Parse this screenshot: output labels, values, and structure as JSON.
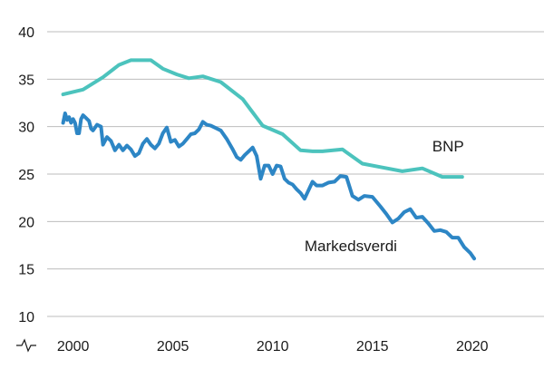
{
  "chart_data": {
    "type": "line",
    "title": "",
    "xlabel": "",
    "ylabel": "",
    "xlim": [
      1998.7,
      2023.6
    ],
    "ylim": [
      10,
      40
    ],
    "y_ticks": [
      10,
      15,
      20,
      25,
      30,
      35,
      40
    ],
    "x_ticks": [
      2000,
      2005,
      2010,
      2015,
      2020
    ],
    "grid": "horizontal",
    "legend": "inline-labels",
    "series": [
      {
        "name": "BNP",
        "color": "#4cc3bd",
        "points": [
          [
            1999.5,
            33.4
          ],
          [
            2000.5,
            33.9
          ],
          [
            2001.5,
            35.2
          ],
          [
            2002.3,
            36.5
          ],
          [
            2002.9,
            37.0
          ],
          [
            2003.3,
            37.0
          ],
          [
            2003.9,
            37.0
          ],
          [
            2004.5,
            36.1
          ],
          [
            2005.2,
            35.5
          ],
          [
            2005.8,
            35.1
          ],
          [
            2006.5,
            35.3
          ],
          [
            2007.4,
            34.7
          ],
          [
            2008.5,
            32.9
          ],
          [
            2009.0,
            31.5
          ],
          [
            2009.5,
            30.1
          ],
          [
            2010.5,
            29.2
          ],
          [
            2011.4,
            27.5
          ],
          [
            2012.0,
            27.4
          ],
          [
            2012.5,
            27.4
          ],
          [
            2013.5,
            27.6
          ],
          [
            2014.5,
            26.1
          ],
          [
            2015.5,
            25.7
          ],
          [
            2016.5,
            25.3
          ],
          [
            2017.5,
            25.6
          ],
          [
            2018.5,
            24.7
          ],
          [
            2019.5,
            24.7
          ]
        ]
      },
      {
        "name": "Markedsverdi",
        "color": "#2d86c5",
        "points": [
          [
            1999.5,
            30.4
          ],
          [
            1999.6,
            31.4
          ],
          [
            1999.7,
            30.7
          ],
          [
            1999.8,
            31.0
          ],
          [
            1999.9,
            30.4
          ],
          [
            2000.0,
            30.8
          ],
          [
            2000.1,
            30.4
          ],
          [
            2000.2,
            29.3
          ],
          [
            2000.3,
            29.3
          ],
          [
            2000.4,
            30.8
          ],
          [
            2000.5,
            31.2
          ],
          [
            2000.65,
            30.9
          ],
          [
            2000.8,
            30.6
          ],
          [
            2000.9,
            29.8
          ],
          [
            2001.0,
            29.6
          ],
          [
            2001.2,
            30.2
          ],
          [
            2001.4,
            30.0
          ],
          [
            2001.5,
            28.1
          ],
          [
            2001.7,
            28.9
          ],
          [
            2001.9,
            28.5
          ],
          [
            2002.1,
            27.5
          ],
          [
            2002.3,
            28.1
          ],
          [
            2002.5,
            27.5
          ],
          [
            2002.7,
            28.0
          ],
          [
            2002.9,
            27.6
          ],
          [
            2003.1,
            26.9
          ],
          [
            2003.3,
            27.2
          ],
          [
            2003.5,
            28.2
          ],
          [
            2003.7,
            28.7
          ],
          [
            2003.9,
            28.1
          ],
          [
            2004.1,
            27.7
          ],
          [
            2004.3,
            28.2
          ],
          [
            2004.5,
            29.3
          ],
          [
            2004.7,
            29.9
          ],
          [
            2004.9,
            28.4
          ],
          [
            2005.1,
            28.6
          ],
          [
            2005.3,
            27.9
          ],
          [
            2005.5,
            28.2
          ],
          [
            2005.7,
            28.7
          ],
          [
            2005.9,
            29.2
          ],
          [
            2006.1,
            29.3
          ],
          [
            2006.3,
            29.7
          ],
          [
            2006.5,
            30.5
          ],
          [
            2006.7,
            30.2
          ],
          [
            2006.9,
            30.1
          ],
          [
            2007.1,
            29.9
          ],
          [
            2007.4,
            29.6
          ],
          [
            2007.7,
            28.7
          ],
          [
            2008.0,
            27.6
          ],
          [
            2008.2,
            26.8
          ],
          [
            2008.4,
            26.5
          ],
          [
            2008.6,
            27.0
          ],
          [
            2008.8,
            27.4
          ],
          [
            2009.0,
            27.8
          ],
          [
            2009.2,
            26.9
          ],
          [
            2009.4,
            24.5
          ],
          [
            2009.6,
            25.9
          ],
          [
            2009.8,
            25.9
          ],
          [
            2010.0,
            25.0
          ],
          [
            2010.2,
            25.9
          ],
          [
            2010.4,
            25.8
          ],
          [
            2010.6,
            24.5
          ],
          [
            2010.8,
            24.1
          ],
          [
            2011.0,
            23.9
          ],
          [
            2011.2,
            23.4
          ],
          [
            2011.4,
            23.0
          ],
          [
            2011.6,
            22.4
          ],
          [
            2011.8,
            23.3
          ],
          [
            2012.0,
            24.2
          ],
          [
            2012.2,
            23.8
          ],
          [
            2012.5,
            23.8
          ],
          [
            2012.8,
            24.1
          ],
          [
            2013.1,
            24.2
          ],
          [
            2013.4,
            24.8
          ],
          [
            2013.7,
            24.7
          ],
          [
            2014.0,
            22.7
          ],
          [
            2014.3,
            22.3
          ],
          [
            2014.6,
            22.7
          ],
          [
            2015.0,
            22.6
          ],
          [
            2015.4,
            21.6
          ],
          [
            2015.7,
            20.8
          ],
          [
            2016.0,
            19.9
          ],
          [
            2016.3,
            20.3
          ],
          [
            2016.6,
            21.0
          ],
          [
            2016.9,
            21.3
          ],
          [
            2017.2,
            20.4
          ],
          [
            2017.5,
            20.5
          ],
          [
            2017.8,
            19.8
          ],
          [
            2018.1,
            19.0
          ],
          [
            2018.4,
            19.1
          ],
          [
            2018.7,
            18.9
          ],
          [
            2019.0,
            18.3
          ],
          [
            2019.3,
            18.3
          ],
          [
            2019.6,
            17.3
          ],
          [
            2019.9,
            16.7
          ],
          [
            2020.1,
            16.1
          ]
        ]
      }
    ],
    "annotations": [
      {
        "text": "BNP",
        "series": "BNP",
        "x": 2018.0,
        "y": 27.4
      },
      {
        "text": "Markedsverdi",
        "series": "Markedsverdi",
        "x": 2011.6,
        "y": 16.9
      }
    ]
  }
}
